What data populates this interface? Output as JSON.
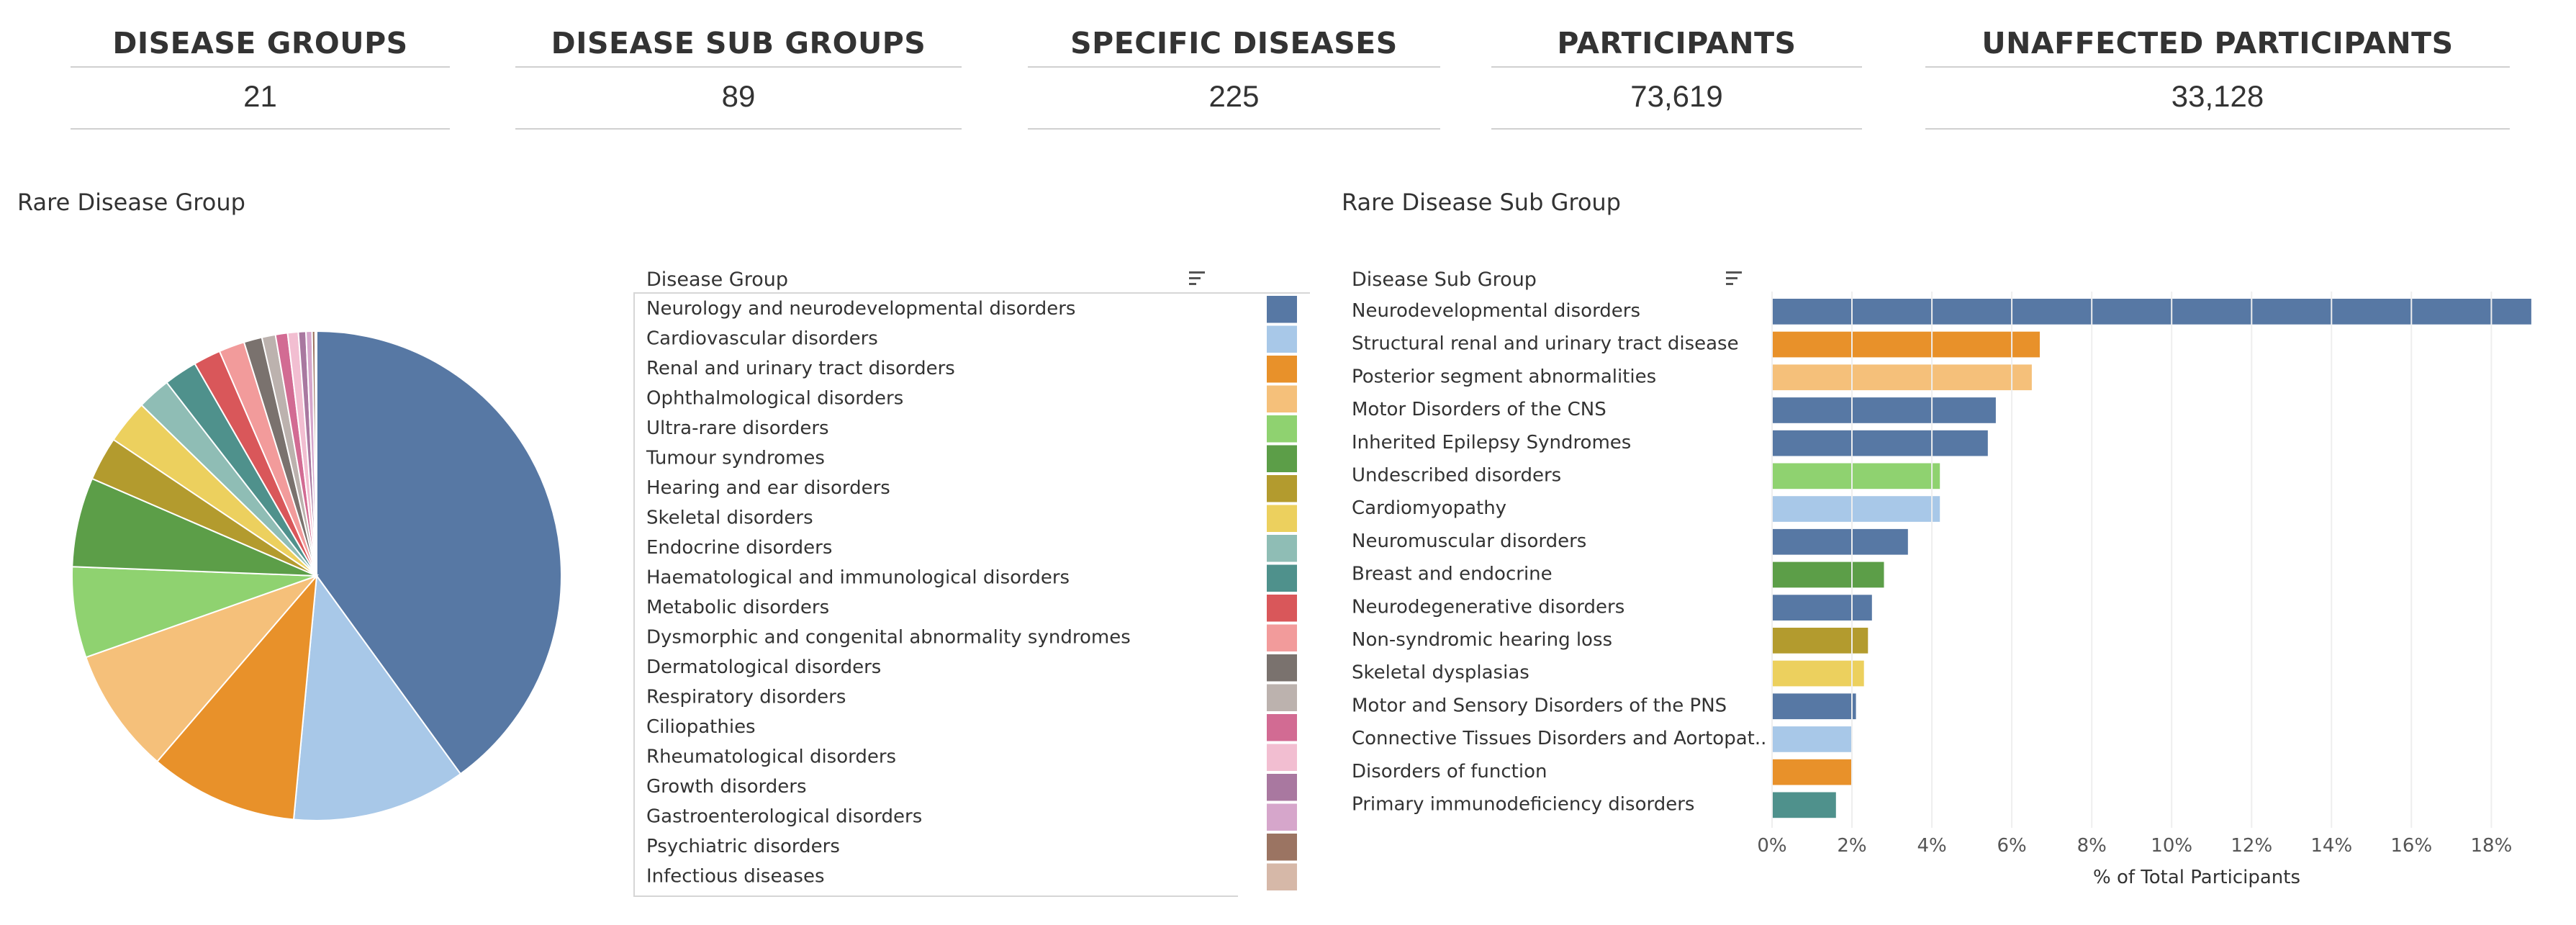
{
  "kpis": [
    {
      "label": "DISEASE GROUPS",
      "value": "21"
    },
    {
      "label": "DISEASE SUB GROUPS",
      "value": "89"
    },
    {
      "label": "SPECIFIC DISEASES",
      "value": "225"
    },
    {
      "label": "PARTICIPANTS",
      "value": "73,619"
    },
    {
      "label": "UNAFFECTED PARTICIPANTS",
      "value": "33,128"
    }
  ],
  "chart_data": [
    {
      "type": "pie",
      "title": "Rare Disease Group",
      "legend_header": "Disease Group",
      "legend_placement": "right",
      "categories": [
        "Neurology and neurodevelopmental disorders",
        "Cardiovascular disorders",
        "Renal and urinary tract disorders",
        "Ophthalmological disorders",
        "Ultra-rare disorders",
        "Tumour syndromes",
        "Hearing and ear disorders",
        "Skeletal disorders",
        "Endocrine disorders",
        "Haematological and immunological disorders",
        "Metabolic disorders",
        "Dysmorphic and congenital abnormality syndromes",
        "Dermatological disorders",
        "Respiratory disorders",
        "Ciliopathies",
        "Rheumatological disorders",
        "Growth disorders",
        "Gastroenterological disorders",
        "Psychiatric disorders",
        "Infectious diseases"
      ],
      "values": [
        40.0,
        11.5,
        9.8,
        8.3,
        6.0,
        5.9,
        2.9,
        2.9,
        2.2,
        2.2,
        1.8,
        1.7,
        1.2,
        0.9,
        0.8,
        0.7,
        0.5,
        0.4,
        0.2,
        0.1
      ],
      "colors": [
        "#5778a4",
        "#a8c8e8",
        "#e8912a",
        "#f5c07a",
        "#8fd270",
        "#5c9e48",
        "#b39b2e",
        "#ecd05e",
        "#8fbdb5",
        "#4f918c",
        "#d9575a",
        "#f29b9b",
        "#7a726e",
        "#bcb2ae",
        "#d26b93",
        "#f2bed1",
        "#a978a0",
        "#d6a6cb",
        "#9b7462",
        "#d6b8a8"
      ]
    },
    {
      "type": "bar",
      "orientation": "horizontal",
      "title": "Rare Disease Sub Group",
      "column_header": "Disease Sub Group",
      "categories": [
        "Neurodevelopmental disorders",
        "Structural renal and urinary tract disease",
        "Posterior segment abnormalities",
        "Motor Disorders of the CNS",
        "Inherited Epilepsy Syndromes",
        "Undescribed disorders",
        "Cardiomyopathy",
        "Neuromuscular disorders",
        "Breast and endocrine",
        "Neurodegenerative disorders",
        "Non-syndromic hearing loss",
        "Skeletal dysplasias",
        "Motor and Sensory Disorders of the PNS",
        "Connective Tissues Disorders and Aortopat..",
        "Disorders of function",
        "Primary immunodeficiency disorders"
      ],
      "values": [
        19.0,
        6.7,
        6.5,
        5.6,
        5.4,
        4.2,
        4.2,
        3.4,
        2.8,
        2.5,
        2.4,
        2.3,
        2.1,
        2.0,
        2.0,
        1.6
      ],
      "colors": [
        "#5778a4",
        "#e8912a",
        "#f5c07a",
        "#5778a4",
        "#5778a4",
        "#8fd270",
        "#a8c8e8",
        "#5778a4",
        "#5c9e48",
        "#5778a4",
        "#b39b2e",
        "#ecd05e",
        "#5778a4",
        "#a8c8e8",
        "#e8912a",
        "#4f918c"
      ],
      "xlabel": "% of Total Participants",
      "xticks": [
        "0%",
        "2%",
        "4%",
        "6%",
        "8%",
        "10%",
        "12%",
        "14%",
        "16%",
        "18%"
      ],
      "xlim": [
        0,
        19.2
      ]
    }
  ]
}
